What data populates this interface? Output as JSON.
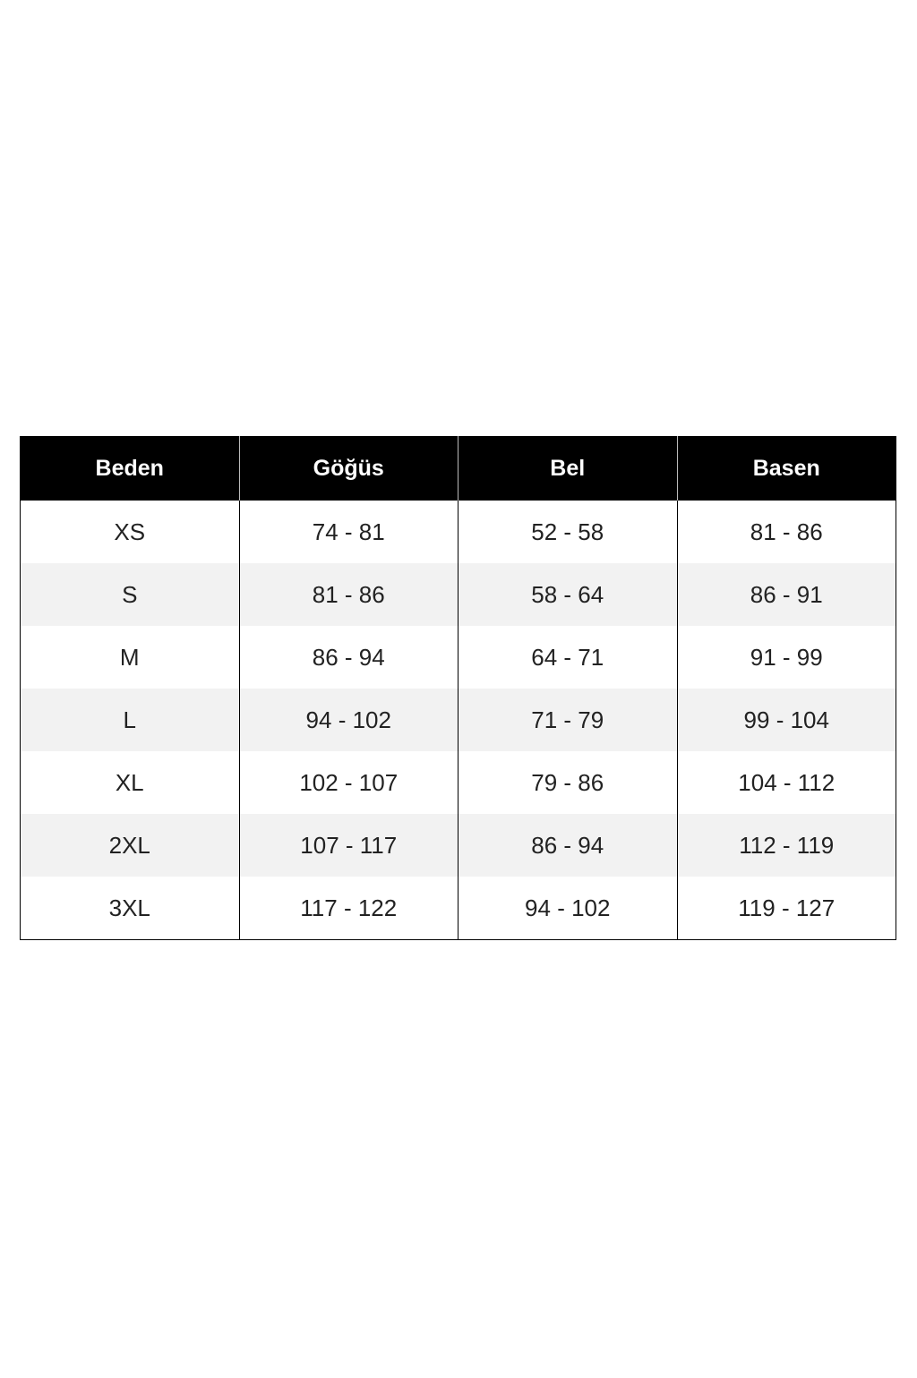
{
  "table": {
    "headers": [
      "Beden",
      "Göğüs",
      "Bel",
      "Basen"
    ],
    "rows": [
      [
        "XS",
        "74 - 81",
        "52 - 58",
        "81 - 86"
      ],
      [
        "S",
        "81 - 86",
        "58 - 64",
        "86 - 91"
      ],
      [
        "M",
        "86 - 94",
        "64 - 71",
        "91 - 99"
      ],
      [
        "L",
        "94 - 102",
        "71 - 79",
        "99 - 104"
      ],
      [
        "XL",
        "102 - 107",
        "79 - 86",
        "104 - 112"
      ],
      [
        "2XL",
        "107 - 117",
        "86 - 94",
        "112 - 119"
      ],
      [
        "3XL",
        "117 - 122",
        "94 - 102",
        "119 - 127"
      ]
    ]
  }
}
